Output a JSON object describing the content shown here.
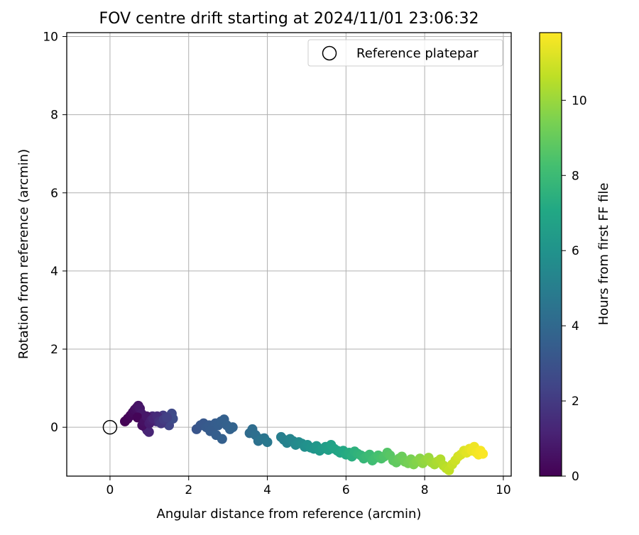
{
  "chart_data": {
    "type": "scatter",
    "title": "FOV centre drift starting at 2024/11/01 23:06:32",
    "xlabel": "Angular distance from reference (arcmin)",
    "ylabel": "Rotation from reference (arcmin)",
    "xlim": [
      -1.1,
      10.2
    ],
    "ylim": [
      -1.25,
      10.1
    ],
    "xticks": [
      "0",
      "2",
      "4",
      "6",
      "8",
      "10"
    ],
    "yticks": [
      "0",
      "2",
      "4",
      "6",
      "8",
      "10"
    ],
    "grid": true,
    "legend": {
      "position": "top-right",
      "entries": [
        "Reference platepar"
      ]
    },
    "colorbar": {
      "label": "Hours from first FF file",
      "colormap": "viridis",
      "range": [
        0,
        11.8
      ],
      "ticks": [
        "0",
        "2",
        "4",
        "6",
        "8",
        "10"
      ]
    },
    "reference_point": {
      "x": 0,
      "y": 0
    },
    "series": [
      {
        "x": [
          0.38,
          0.45,
          0.52,
          0.58,
          0.63,
          0.68,
          0.72,
          0.76,
          0.8,
          0.85,
          0.9,
          0.95,
          0.99,
          1.03,
          1.08,
          1.13,
          1.18,
          1.22,
          1.27,
          1.31,
          1.35,
          1.39,
          1.42,
          1.46,
          1.5,
          1.53,
          1.57,
          1.6,
          0.7,
          0.82,
          0.88,
          0.93,
          1.0,
          1.05,
          1.1,
          1.2,
          1.25,
          1.3,
          1.37,
          1.45,
          2.2,
          2.3,
          2.38,
          2.45,
          2.52,
          2.6,
          2.68,
          2.75,
          2.82,
          2.9,
          2.97,
          3.05,
          3.12,
          2.55,
          2.7,
          2.85,
          3.55,
          3.62,
          3.7,
          3.77,
          3.85,
          3.92,
          4.0,
          4.35,
          4.42,
          4.5,
          4.58,
          4.65,
          4.72,
          4.8,
          4.88,
          4.95,
          5.02,
          5.1,
          5.18,
          5.25,
          5.33,
          5.4,
          5.48,
          5.55,
          5.62,
          5.7,
          5.78,
          5.85,
          5.93,
          6.0,
          6.08,
          6.15,
          6.22,
          6.3,
          6.38,
          6.45,
          6.52,
          6.6,
          6.67,
          6.75,
          6.82,
          6.9,
          6.97,
          7.05,
          7.12,
          7.2,
          7.28,
          7.35,
          7.42,
          7.5,
          7.58,
          7.65,
          7.72,
          7.8,
          7.88,
          7.95,
          8.02,
          8.1,
          8.18,
          8.25,
          8.32,
          8.4,
          8.48,
          8.55,
          8.62,
          8.7,
          8.78,
          8.85,
          8.92,
          9.0,
          9.07,
          9.14,
          9.2,
          9.26,
          9.32,
          9.37,
          9.42,
          9.48
        ],
        "y": [
          0.15,
          0.22,
          0.3,
          0.38,
          0.45,
          0.5,
          0.55,
          0.48,
          0.35,
          0.1,
          0.0,
          -0.08,
          -0.12,
          0.2,
          0.28,
          0.22,
          0.15,
          0.25,
          0.18,
          0.2,
          0.3,
          0.22,
          0.12,
          0.18,
          0.05,
          0.2,
          0.35,
          0.22,
          0.25,
          0.05,
          0.15,
          0.28,
          0.1,
          0.18,
          0.22,
          0.28,
          0.15,
          0.1,
          0.2,
          0.25,
          -0.05,
          0.05,
          0.1,
          0.0,
          0.05,
          -0.05,
          0.1,
          0.05,
          0.15,
          0.2,
          0.05,
          -0.05,
          0.0,
          -0.1,
          -0.2,
          -0.3,
          -0.15,
          -0.05,
          -0.2,
          -0.35,
          -0.3,
          -0.28,
          -0.38,
          -0.25,
          -0.32,
          -0.4,
          -0.3,
          -0.35,
          -0.45,
          -0.38,
          -0.42,
          -0.5,
          -0.45,
          -0.52,
          -0.55,
          -0.48,
          -0.6,
          -0.55,
          -0.5,
          -0.58,
          -0.45,
          -0.55,
          -0.6,
          -0.65,
          -0.6,
          -0.7,
          -0.65,
          -0.75,
          -0.62,
          -0.68,
          -0.72,
          -0.8,
          -0.75,
          -0.7,
          -0.85,
          -0.78,
          -0.72,
          -0.8,
          -0.75,
          -0.65,
          -0.72,
          -0.85,
          -0.9,
          -0.8,
          -0.75,
          -0.88,
          -0.92,
          -0.82,
          -0.95,
          -0.88,
          -0.8,
          -0.92,
          -0.85,
          -0.78,
          -0.9,
          -0.95,
          -0.88,
          -0.82,
          -0.98,
          -1.05,
          -1.1,
          -0.95,
          -0.85,
          -0.75,
          -0.7,
          -0.6,
          -0.65,
          -0.55,
          -0.6,
          -0.5,
          -0.65,
          -0.7,
          -0.6,
          -0.68
        ],
        "c": [
          0.05,
          0.1,
          0.2,
          0.3,
          0.4,
          0.5,
          0.6,
          0.7,
          0.8,
          0.9,
          1.0,
          1.1,
          1.2,
          1.3,
          1.4,
          1.5,
          1.6,
          1.7,
          1.8,
          1.9,
          2.0,
          2.1,
          2.2,
          2.3,
          2.4,
          2.5,
          2.6,
          2.7,
          0.15,
          0.45,
          0.55,
          0.75,
          0.95,
          1.05,
          1.25,
          1.45,
          1.65,
          1.85,
          2.05,
          2.25,
          3.1,
          3.2,
          3.25,
          3.3,
          3.35,
          3.4,
          3.45,
          3.5,
          3.55,
          3.6,
          3.65,
          3.7,
          3.75,
          3.4,
          3.5,
          3.6,
          4.1,
          4.2,
          4.3,
          4.4,
          4.5,
          4.6,
          4.7,
          5.0,
          5.1,
          5.2,
          5.3,
          5.4,
          5.5,
          5.6,
          5.7,
          5.8,
          5.9,
          6.0,
          6.1,
          6.2,
          6.3,
          6.4,
          6.5,
          6.6,
          6.7,
          6.8,
          6.9,
          7.0,
          7.1,
          7.2,
          7.3,
          7.4,
          7.5,
          7.6,
          7.7,
          7.8,
          7.9,
          8.0,
          8.1,
          8.2,
          8.3,
          8.4,
          8.5,
          8.6,
          8.7,
          8.8,
          8.9,
          9.0,
          9.1,
          9.2,
          9.3,
          9.4,
          9.5,
          9.6,
          9.7,
          9.8,
          9.9,
          10.0,
          10.1,
          10.2,
          10.3,
          10.4,
          10.5,
          10.6,
          10.7,
          10.8,
          10.9,
          11.0,
          11.1,
          11.2,
          11.3,
          11.4,
          11.5,
          11.55,
          11.6,
          11.65,
          11.7,
          11.75
        ]
      }
    ]
  }
}
